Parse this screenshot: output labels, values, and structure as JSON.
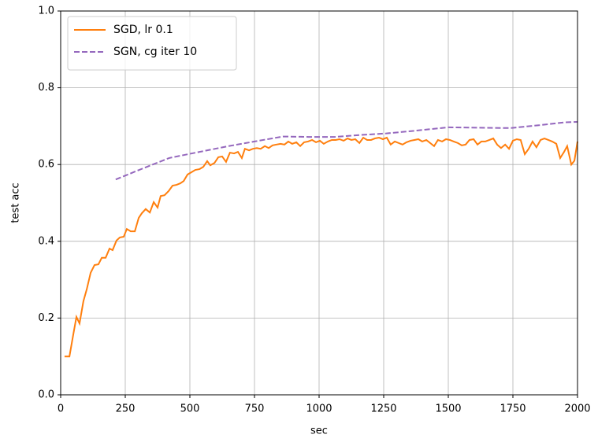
{
  "chart_data": {
    "type": "line",
    "xlabel": "sec",
    "ylabel": "test acc",
    "xlim": [
      0,
      2000
    ],
    "ylim": [
      0,
      1
    ],
    "xticks": [
      0,
      250,
      500,
      750,
      1000,
      1250,
      1500,
      1750,
      2000
    ],
    "yticks": [
      {
        "value": 0,
        "label": "0.0"
      },
      0.2,
      0.4,
      0.6,
      0.8,
      {
        "value": 1,
        "label": "1.0"
      }
    ],
    "grid": true,
    "legend": "upper left",
    "series": [
      {
        "name": "SGD, lr 0.1",
        "color": "#ff7f0e",
        "linestyle": "solid",
        "x": [
          15,
          34,
          49,
          61,
          73,
          88,
          101,
          116,
          131,
          146,
          159,
          174,
          189,
          201,
          216,
          229,
          244,
          256,
          271,
          287,
          302,
          314,
          329,
          345,
          360,
          375,
          387,
          402,
          418,
          433,
          448,
          463,
          476,
          491,
          506,
          521,
          537,
          552,
          567,
          579,
          595,
          610,
          625,
          640,
          655,
          671,
          686,
          701,
          713,
          729,
          744,
          759,
          774,
          790,
          805,
          820,
          835,
          851,
          866,
          881,
          896,
          912,
          927,
          942,
          957,
          973,
          988,
          1003,
          1018,
          1034,
          1049,
          1064,
          1079,
          1095,
          1110,
          1125,
          1140,
          1156,
          1171,
          1186,
          1201,
          1216,
          1232,
          1247,
          1262,
          1277,
          1293,
          1308,
          1323,
          1338,
          1354,
          1369,
          1384,
          1399,
          1415,
          1430,
          1445,
          1460,
          1476,
          1491,
          1506,
          1521,
          1537,
          1552,
          1567,
          1582,
          1598,
          1613,
          1628,
          1643,
          1659,
          1674,
          1689,
          1704,
          1720,
          1735,
          1750,
          1765,
          1780,
          1796,
          1811,
          1826,
          1841,
          1857,
          1872,
          1887,
          1902,
          1918,
          1933,
          1948,
          1960,
          1976,
          1988,
          2000
        ],
        "values": [
          0.1,
          0.1,
          0.158,
          0.203,
          0.186,
          0.244,
          0.275,
          0.318,
          0.338,
          0.34,
          0.357,
          0.357,
          0.381,
          0.377,
          0.402,
          0.41,
          0.412,
          0.432,
          0.426,
          0.426,
          0.461,
          0.473,
          0.484,
          0.475,
          0.502,
          0.488,
          0.518,
          0.52,
          0.531,
          0.545,
          0.547,
          0.551,
          0.557,
          0.574,
          0.58,
          0.586,
          0.588,
          0.594,
          0.609,
          0.598,
          0.604,
          0.619,
          0.621,
          0.607,
          0.631,
          0.629,
          0.633,
          0.617,
          0.641,
          0.637,
          0.641,
          0.643,
          0.641,
          0.648,
          0.643,
          0.65,
          0.652,
          0.654,
          0.652,
          0.66,
          0.654,
          0.658,
          0.648,
          0.658,
          0.66,
          0.664,
          0.658,
          0.662,
          0.654,
          0.66,
          0.664,
          0.664,
          0.666,
          0.662,
          0.668,
          0.664,
          0.666,
          0.656,
          0.67,
          0.664,
          0.664,
          0.668,
          0.67,
          0.666,
          0.67,
          0.652,
          0.66,
          0.656,
          0.652,
          0.658,
          0.662,
          0.664,
          0.666,
          0.66,
          0.664,
          0.656,
          0.648,
          0.664,
          0.66,
          0.666,
          0.664,
          0.66,
          0.656,
          0.65,
          0.652,
          0.664,
          0.666,
          0.652,
          0.66,
          0.66,
          0.664,
          0.668,
          0.652,
          0.643,
          0.652,
          0.641,
          0.662,
          0.666,
          0.664,
          0.627,
          0.641,
          0.66,
          0.645,
          0.664,
          0.668,
          0.664,
          0.66,
          0.654,
          0.617,
          0.633,
          0.648,
          0.6,
          0.61,
          0.66
        ]
      },
      {
        "name": "SGN, cg iter 10",
        "color": "#9467bd",
        "linestyle": "dashed",
        "x": [
          213,
          300,
          420,
          530,
          650,
          750,
          860,
          960,
          1060,
          1160,
          1260,
          1370,
          1500,
          1620,
          1740,
          1860,
          1950,
          2000
        ],
        "values": [
          0.561,
          0.585,
          0.617,
          0.632,
          0.648,
          0.66,
          0.673,
          0.672,
          0.672,
          0.677,
          0.681,
          0.688,
          0.697,
          0.696,
          0.695,
          0.703,
          0.71,
          0.711
        ]
      }
    ]
  }
}
